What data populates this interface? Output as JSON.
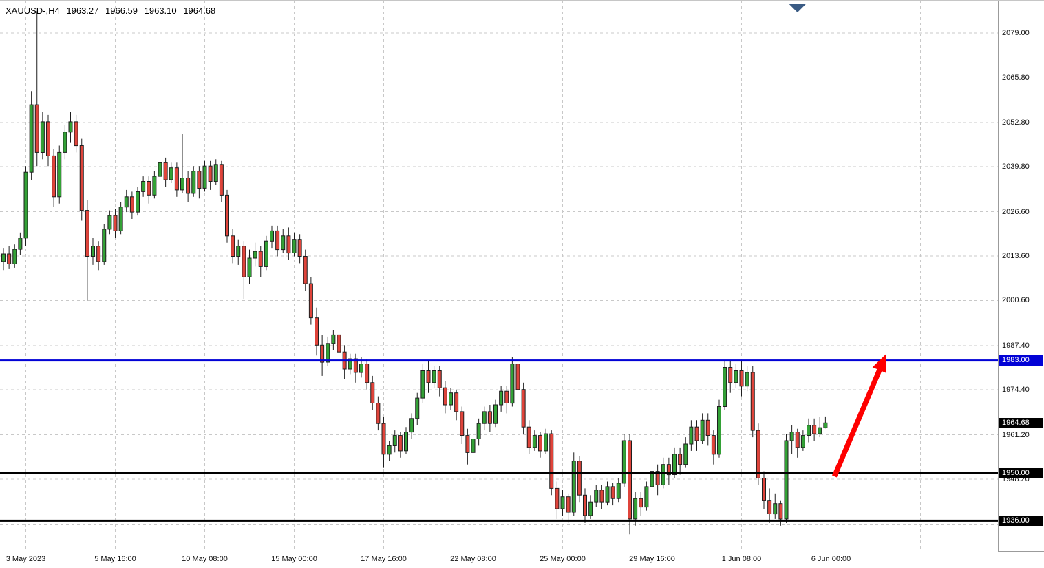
{
  "header": {
    "symbol_period": "XAUUSD-,H4",
    "open": "1963.27",
    "high": "1966.59",
    "low": "1963.10",
    "close": "1964.68"
  },
  "chart_data": {
    "type": "candlestick",
    "title": "XAUUSD-,H4",
    "symbol": "XAUUSD-",
    "timeframe": "H4",
    "ylim": [
      1927.0,
      2088.5
    ],
    "y_axis": {
      "ticks": [
        2079.0,
        2065.8,
        2052.8,
        2039.8,
        2026.6,
        2013.6,
        2000.6,
        1987.4,
        1974.4,
        1961.2,
        1948.2,
        1935.0
      ]
    },
    "x_axis": {
      "labels": [
        {
          "label": "3 May 2023",
          "bar": 4
        },
        {
          "label": "5 May 16:00",
          "bar": 20
        },
        {
          "label": "10 May 08:00",
          "bar": 36
        },
        {
          "label": "15 May 00:00",
          "bar": 52
        },
        {
          "label": "17 May 16:00",
          "bar": 68
        },
        {
          "label": "22 May 08:00",
          "bar": 84
        },
        {
          "label": "25 May 00:00",
          "bar": 100
        },
        {
          "label": "29 May 16:00",
          "bar": 116
        },
        {
          "label": "1 Jun 08:00",
          "bar": 132
        },
        {
          "label": "6 Jun 00:00",
          "bar": 148
        }
      ],
      "grid_extra_bars": [
        164
      ]
    },
    "candles": [
      [
        2012.0,
        2016.0,
        2009.5,
        2014.2
      ],
      [
        2014.2,
        2016.5,
        2010.0,
        2011.3
      ],
      [
        2011.3,
        2017.0,
        2010.2,
        2015.6
      ],
      [
        2015.6,
        2020.5,
        2013.8,
        2018.9
      ],
      [
        2018.9,
        2040.0,
        2016.5,
        2038.2
      ],
      [
        2038.2,
        2062.0,
        2036.0,
        2058.0
      ],
      [
        2058.0,
        2085.4,
        2040.0,
        2044.0
      ],
      [
        2044.0,
        2056.0,
        2042.0,
        2053.0
      ],
      [
        2053.0,
        2055.0,
        2040.0,
        2043.0
      ],
      [
        2043.0,
        2045.0,
        2028.0,
        2031.0
      ],
      [
        2031.0,
        2046.0,
        2029.0,
        2044.0
      ],
      [
        2044.0,
        2052.0,
        2042.0,
        2050.0
      ],
      [
        2050.0,
        2056.0,
        2047.0,
        2053.0
      ],
      [
        2053.0,
        2055.0,
        2044.0,
        2046.0
      ],
      [
        2046.0,
        2048.0,
        2024.0,
        2027.0
      ],
      [
        2027.0,
        2030.0,
        2000.5,
        2013.5
      ],
      [
        2013.5,
        2019.0,
        2011.0,
        2016.5
      ],
      [
        2016.5,
        2018.0,
        2009.5,
        2012.0
      ],
      [
        2012.0,
        2023.0,
        2011.0,
        2021.5
      ],
      [
        2021.5,
        2027.0,
        2020.0,
        2025.5
      ],
      [
        2025.5,
        2027.5,
        2019.0,
        2021.0
      ],
      [
        2021.0,
        2029.5,
        2020.0,
        2028.0
      ],
      [
        2028.0,
        2033.0,
        2026.5,
        2031.0
      ],
      [
        2031.0,
        2032.5,
        2024.5,
        2026.5
      ],
      [
        2026.5,
        2034.0,
        2025.5,
        2032.5
      ],
      [
        2032.5,
        2037.0,
        2031.0,
        2035.5
      ],
      [
        2035.5,
        2037.0,
        2029.0,
        2031.5
      ],
      [
        2031.5,
        2038.5,
        2030.5,
        2037.0
      ],
      [
        2037.0,
        2042.5,
        2035.5,
        2041.0
      ],
      [
        2041.0,
        2042.5,
        2034.0,
        2036.0
      ],
      [
        2036.0,
        2041.0,
        2035.0,
        2039.5
      ],
      [
        2039.5,
        2041.0,
        2031.0,
        2033.0
      ],
      [
        2033.0,
        2049.5,
        2032.0,
        2036.5
      ],
      [
        2036.5,
        2038.5,
        2029.5,
        2032.0
      ],
      [
        2032.0,
        2040.0,
        2031.0,
        2038.5
      ],
      [
        2038.5,
        2040.0,
        2030.5,
        2033.5
      ],
      [
        2033.5,
        2041.5,
        2032.5,
        2040.0
      ],
      [
        2040.0,
        2041.5,
        2033.0,
        2035.5
      ],
      [
        2035.5,
        2042.0,
        2034.5,
        2040.5
      ],
      [
        2040.5,
        2041.5,
        2029.5,
        2031.5
      ],
      [
        2031.5,
        2033.0,
        2017.5,
        2019.5
      ],
      [
        2019.5,
        2021.5,
        2011.5,
        2013.5
      ],
      [
        2013.5,
        2018.5,
        2011.0,
        2016.5
      ],
      [
        2016.5,
        2018.0,
        2001.0,
        2007.5
      ],
      [
        2007.5,
        2015.5,
        2005.5,
        2013.0
      ],
      [
        2013.0,
        2017.5,
        2010.5,
        2015.0
      ],
      [
        2015.0,
        2016.5,
        2007.5,
        2010.5
      ],
      [
        2010.5,
        2019.5,
        2009.5,
        2018.0
      ],
      [
        2018.0,
        2022.5,
        2016.0,
        2021.0
      ],
      [
        2021.0,
        2022.5,
        2013.5,
        2015.5
      ],
      [
        2015.5,
        2021.5,
        2014.5,
        2019.5
      ],
      [
        2019.5,
        2022.0,
        2012.5,
        2014.5
      ],
      [
        2014.5,
        2020.5,
        2013.5,
        2018.5
      ],
      [
        2018.5,
        2020.0,
        2011.5,
        2013.5
      ],
      [
        2013.5,
        2015.5,
        2003.5,
        2005.5
      ],
      [
        2005.5,
        2007.5,
        1993.5,
        1995.5
      ],
      [
        1995.5,
        1998.5,
        1984.5,
        1987.5
      ],
      [
        1987.5,
        1990.5,
        1978.5,
        1982.5
      ],
      [
        1982.5,
        1990.0,
        1981.5,
        1988.0
      ],
      [
        1988.0,
        1992.0,
        1986.0,
        1990.5
      ],
      [
        1990.5,
        1991.5,
        1983.0,
        1985.5
      ],
      [
        1985.5,
        1987.5,
        1977.5,
        1980.5
      ],
      [
        1980.5,
        1985.0,
        1979.0,
        1983.5
      ],
      [
        1983.5,
        1985.0,
        1976.5,
        1979.5
      ],
      [
        1979.5,
        1984.0,
        1978.0,
        1982.0
      ],
      [
        1982.0,
        1983.5,
        1974.5,
        1976.5
      ],
      [
        1976.5,
        1978.5,
        1968.5,
        1970.5
      ],
      [
        1970.5,
        1972.5,
        1962.5,
        1964.5
      ],
      [
        1964.5,
        1966.5,
        1951.5,
        1955.5
      ],
      [
        1955.5,
        1959.5,
        1953.5,
        1958.0
      ],
      [
        1958.0,
        1962.5,
        1956.0,
        1961.0
      ],
      [
        1961.0,
        1962.0,
        1954.5,
        1956.5
      ],
      [
        1956.5,
        1963.5,
        1955.5,
        1962.0
      ],
      [
        1962.0,
        1967.5,
        1960.0,
        1966.0
      ],
      [
        1966.0,
        1973.5,
        1964.0,
        1972.0
      ],
      [
        1972.0,
        1982.0,
        1970.5,
        1980.0
      ],
      [
        1980.0,
        1983.0,
        1973.5,
        1976.5
      ],
      [
        1976.5,
        1981.5,
        1975.0,
        1980.0
      ],
      [
        1980.0,
        1981.5,
        1972.5,
        1975.0
      ],
      [
        1975.0,
        1977.0,
        1967.5,
        1970.0
      ],
      [
        1970.0,
        1975.0,
        1968.5,
        1973.5
      ],
      [
        1973.5,
        1974.5,
        1965.5,
        1968.0
      ],
      [
        1968.0,
        1969.5,
        1958.5,
        1961.0
      ],
      [
        1961.0,
        1963.0,
        1952.5,
        1956.0
      ],
      [
        1956.0,
        1961.5,
        1954.5,
        1960.0
      ],
      [
        1960.0,
        1966.0,
        1958.0,
        1964.5
      ],
      [
        1964.5,
        1969.5,
        1962.5,
        1968.0
      ],
      [
        1968.0,
        1970.0,
        1962.0,
        1964.5
      ],
      [
        1964.5,
        1971.5,
        1963.5,
        1970.0
      ],
      [
        1970.0,
        1975.5,
        1968.0,
        1974.0
      ],
      [
        1974.0,
        1975.5,
        1967.5,
        1970.5
      ],
      [
        1970.5,
        1984.0,
        1969.5,
        1982.0
      ],
      [
        1982.0,
        1983.5,
        1971.5,
        1974.5
      ],
      [
        1974.5,
        1976.5,
        1961.5,
        1963.5
      ],
      [
        1963.5,
        1965.5,
        1955.5,
        1957.5
      ],
      [
        1957.5,
        1962.5,
        1956.5,
        1961.0
      ],
      [
        1961.0,
        1962.0,
        1954.5,
        1956.5
      ],
      [
        1956.5,
        1963.0,
        1955.5,
        1961.5
      ],
      [
        1961.5,
        1962.5,
        1943.5,
        1945.5
      ],
      [
        1945.5,
        1947.5,
        1936.5,
        1939.5
      ],
      [
        1939.5,
        1945.0,
        1937.5,
        1943.0
      ],
      [
        1943.0,
        1944.0,
        1935.5,
        1938.5
      ],
      [
        1938.5,
        1956.0,
        1937.5,
        1953.5
      ],
      [
        1953.5,
        1955.0,
        1941.5,
        1943.5
      ],
      [
        1943.5,
        1945.5,
        1935.5,
        1937.5
      ],
      [
        1937.5,
        1943.5,
        1936.5,
        1941.5
      ],
      [
        1941.5,
        1946.5,
        1940.0,
        1945.0
      ],
      [
        1945.0,
        1946.5,
        1939.5,
        1941.5
      ],
      [
        1941.5,
        1947.5,
        1940.5,
        1946.0
      ],
      [
        1946.0,
        1947.0,
        1940.5,
        1942.5
      ],
      [
        1942.5,
        1948.5,
        1941.5,
        1947.0
      ],
      [
        1947.0,
        1961.5,
        1946.0,
        1959.5
      ],
      [
        1959.5,
        1961.5,
        1932.0,
        1936.5
      ],
      [
        1936.5,
        1944.5,
        1934.5,
        1942.5
      ],
      [
        1942.5,
        1944.5,
        1937.5,
        1940.0
      ],
      [
        1940.0,
        1947.5,
        1939.0,
        1946.0
      ],
      [
        1946.0,
        1952.5,
        1944.5,
        1950.5
      ],
      [
        1950.5,
        1952.5,
        1943.5,
        1946.5
      ],
      [
        1946.5,
        1954.5,
        1945.5,
        1952.5
      ],
      [
        1952.5,
        1954.5,
        1946.5,
        1949.5
      ],
      [
        1949.5,
        1957.5,
        1948.5,
        1955.5
      ],
      [
        1955.5,
        1957.5,
        1949.5,
        1952.5
      ],
      [
        1952.5,
        1960.5,
        1951.5,
        1958.5
      ],
      [
        1958.5,
        1965.5,
        1956.5,
        1963.5
      ],
      [
        1963.5,
        1965.5,
        1956.5,
        1959.5
      ],
      [
        1959.5,
        1967.5,
        1958.5,
        1965.5
      ],
      [
        1965.5,
        1967.5,
        1958.0,
        1961.0
      ],
      [
        1961.0,
        1962.5,
        1952.5,
        1955.5
      ],
      [
        1955.5,
        1971.5,
        1954.5,
        1969.5
      ],
      [
        1969.5,
        1983.0,
        1968.5,
        1981.0
      ],
      [
        1981.0,
        1983.0,
        1973.5,
        1976.5
      ],
      [
        1976.5,
        1982.0,
        1975.0,
        1980.0
      ],
      [
        1980.0,
        1983.0,
        1972.5,
        1975.5
      ],
      [
        1975.5,
        1981.5,
        1974.0,
        1979.5
      ],
      [
        1979.5,
        1981.5,
        1960.5,
        1962.5
      ],
      [
        1962.5,
        1964.5,
        1946.5,
        1948.5
      ],
      [
        1948.5,
        1950.5,
        1939.5,
        1942.0
      ],
      [
        1942.0,
        1945.5,
        1935.5,
        1938.0
      ],
      [
        1938.0,
        1944.0,
        1936.5,
        1941.0
      ],
      [
        1941.0,
        1942.0,
        1934.5,
        1936.5
      ],
      [
        1936.5,
        1961.5,
        1935.5,
        1959.5
      ],
      [
        1959.5,
        1964.0,
        1955.5,
        1962.0
      ],
      [
        1962.0,
        1963.0,
        1954.5,
        1957.5
      ],
      [
        1957.5,
        1962.5,
        1956.5,
        1961.0
      ],
      [
        1961.0,
        1966.0,
        1959.0,
        1964.0
      ],
      [
        1964.0,
        1966.0,
        1959.5,
        1961.5
      ],
      [
        1961.5,
        1966.5,
        1960.5,
        1963.3
      ],
      [
        1963.27,
        1966.59,
        1963.1,
        1964.68
      ]
    ],
    "hlines": [
      {
        "price": 1983.0,
        "label": "1983.00",
        "color": "#0202D6"
      },
      {
        "price": 1950.0,
        "label": "1950.00",
        "color": "#000000"
      },
      {
        "price": 1936.0,
        "label": "1936.00",
        "color": "#000000"
      }
    ],
    "current_price": {
      "value": 1964.68,
      "label": "1964.68",
      "tag_color": "#000000"
    },
    "annotations": {
      "arrow": {
        "from": {
          "bar": 148.6,
          "price": 1949.0
        },
        "to": {
          "bar": 157.9,
          "price": 1985.0
        },
        "color": "#FE0000"
      },
      "shift_marker": {
        "bar": 142,
        "color": "#3A5B84"
      }
    },
    "colors": {
      "up": "#33A136",
      "down": "#DF443B",
      "outline": "#1F1F1F",
      "grid": "#C8C8C8",
      "bid_line": "#A0A0A0",
      "background": "#FFFFFF"
    }
  }
}
